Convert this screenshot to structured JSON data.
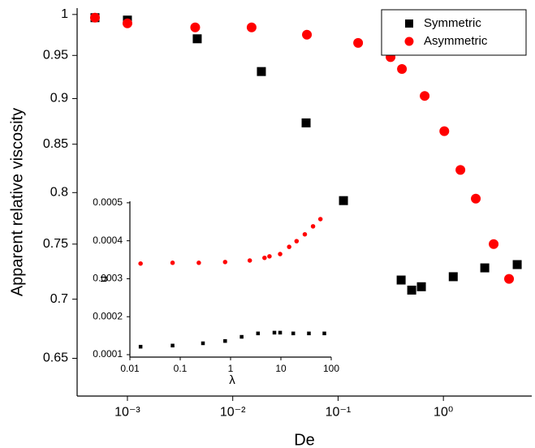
{
  "chart_data": [
    {
      "type": "scatter",
      "xlabel": "De",
      "ylabel": "Apparent relative viscosity",
      "xlog": true,
      "ylog": true,
      "xlim": [
        0.000333,
        6.9
      ],
      "ylim": [
        0.62,
        1.008
      ],
      "xticks": [
        {
          "value": 0.001,
          "label": "10⁻³"
        },
        {
          "value": 0.01,
          "label": "10⁻²"
        },
        {
          "value": 0.1,
          "label": "10⁻¹"
        },
        {
          "value": 1,
          "label": "10⁰"
        }
      ],
      "yticks": [
        0.65,
        0.7,
        0.75,
        0.8,
        0.85,
        0.9,
        0.95,
        1
      ],
      "legend": "upper right",
      "series": [
        {
          "name": "Symmetric",
          "color": "#000000",
          "marker": "square",
          "x": [
            0.000492,
            0.001,
            0.0046,
            0.0187,
            0.0497,
            0.1125,
            0.397,
            0.5,
            0.618,
            1.24,
            2.47,
            5.02
          ],
          "values": [
            0.996,
            0.993,
            0.97,
            0.931,
            0.873,
            0.792,
            0.717,
            0.708,
            0.711,
            0.72,
            0.728,
            0.731
          ]
        },
        {
          "name": "Asymmetric",
          "color": "#ff0000",
          "marker": "circle",
          "x": [
            0.000492,
            0.001,
            0.0044,
            0.0151,
            0.0506,
            0.155,
            0.315,
            0.404,
            0.664,
            1.02,
            1.45,
            2.03,
            3.0,
            4.2
          ],
          "values": [
            0.996,
            0.989,
            0.984,
            0.984,
            0.975,
            0.965,
            0.948,
            0.934,
            0.903,
            0.864,
            0.823,
            0.794,
            0.75,
            0.718
          ]
        }
      ]
    },
    {
      "type": "scatter",
      "xlabel": "λ",
      "ylabel": "u",
      "xlog": true,
      "ylog": false,
      "xlim": [
        0.01,
        100
      ],
      "ylim": [
        9.36e-05,
        0.000504
      ],
      "xticks": [
        0.01,
        0.1,
        1,
        10,
        100
      ],
      "yticks": [
        0.0001,
        0.0002,
        0.0003,
        0.0004,
        0.0005
      ],
      "series": [
        {
          "color": "#ff0000",
          "marker": "circle",
          "x": [
            0.0163,
            0.0705,
            0.234,
            0.78,
            2.41,
            4.73,
            5.93,
            9.66,
            14.6,
            20.5,
            29.9,
            43.5,
            61
          ],
          "values": [
            0.00034,
            0.000342,
            0.000342,
            0.000344,
            0.000348,
            0.000355,
            0.000359,
            0.000365,
            0.000384,
            0.000399,
            0.000417,
            0.000438,
            0.000457
          ]
        },
        {
          "color": "#000000",
          "marker": "square",
          "x": [
            0.0163,
            0.0705,
            0.283,
            0.78,
            1.66,
            3.51,
            7.43,
            9.66,
            17.6,
            36,
            73
          ],
          "values": [
            0.000121,
            0.000124,
            0.00013,
            0.000136,
            0.000147,
            0.000156,
            0.000158,
            0.000158,
            0.000156,
            0.000156,
            0.000156
          ]
        }
      ]
    }
  ]
}
